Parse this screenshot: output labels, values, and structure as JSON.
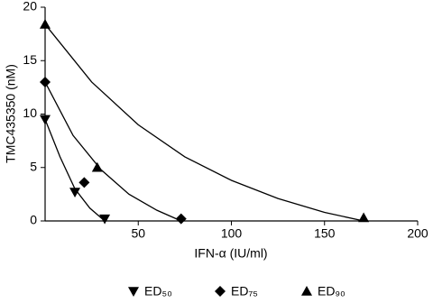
{
  "chart_data": {
    "type": "scatter",
    "xlabel": "IFN-α (IU/ml)",
    "ylabel": "TMC435350 (nM)",
    "xlim": [
      0,
      200
    ],
    "ylim": [
      0,
      20
    ],
    "xticks": [
      50,
      100,
      150,
      200
    ],
    "yticks": [
      0,
      5,
      10,
      15,
      20
    ],
    "legend": "bottom",
    "series": [
      {
        "name": "ED₅₀",
        "color": "#000000",
        "marker": "triangle-down",
        "x": [
          0,
          16,
          32
        ],
        "values": [
          9.5,
          2.7,
          0.2
        ],
        "curve": {
          "x": [
            0,
            8,
            16,
            24,
            32
          ],
          "values": [
            9.5,
            6,
            3,
            1.2,
            0
          ]
        }
      },
      {
        "name": "ED₇₅",
        "color": "#000000",
        "marker": "diamond",
        "x": [
          0,
          21,
          73
        ],
        "values": [
          13,
          3.6,
          0.2
        ],
        "curve": {
          "x": [
            0,
            15,
            30,
            45,
            60,
            73
          ],
          "values": [
            13,
            8,
            4.8,
            2.5,
            1,
            0
          ]
        }
      },
      {
        "name": "ED₉₀",
        "color": "#000000",
        "marker": "triangle-up",
        "x": [
          0,
          28,
          171
        ],
        "values": [
          18.4,
          5,
          0.3
        ],
        "curve": {
          "x": [
            0,
            25,
            50,
            75,
            100,
            125,
            150,
            171
          ],
          "values": [
            18.4,
            13,
            9,
            6,
            3.8,
            2.1,
            0.8,
            0
          ]
        }
      }
    ]
  }
}
